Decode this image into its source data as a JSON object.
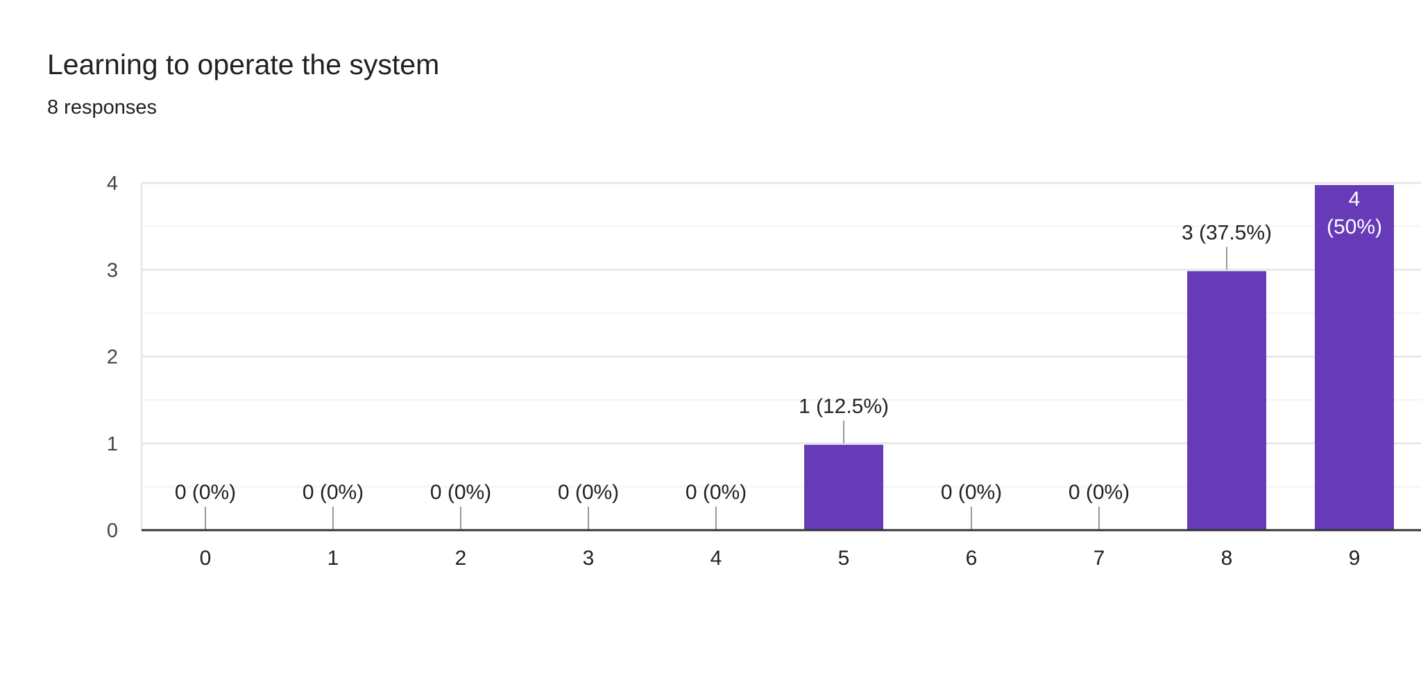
{
  "header": {
    "title": "Learning to operate the system",
    "subtitle": "8 responses"
  },
  "colors": {
    "bar": "#673ab7",
    "text": "#202124",
    "axis_text": "#444444",
    "grid_major": "#e8e8e8",
    "grid_minor": "#f3f3f3",
    "baseline": "#333333",
    "leader": "#999999",
    "inside_label": "#ffffff"
  },
  "chart_data": {
    "type": "bar",
    "categories": [
      "0",
      "1",
      "2",
      "3",
      "4",
      "5",
      "6",
      "7",
      "8",
      "9"
    ],
    "values": [
      0,
      0,
      0,
      0,
      0,
      1,
      0,
      0,
      3,
      4
    ],
    "data_labels": [
      "0 (0%)",
      "0 (0%)",
      "0 (0%)",
      "0 (0%)",
      "0 (0%)",
      "1 (12.5%)",
      "0 (0%)",
      "0 (0%)",
      "3 (37.5%)",
      "4 (50%)"
    ],
    "ylim": [
      0,
      4
    ],
    "yticks": [
      0,
      1,
      2,
      3,
      4
    ],
    "grid": true,
    "legend": "none"
  }
}
